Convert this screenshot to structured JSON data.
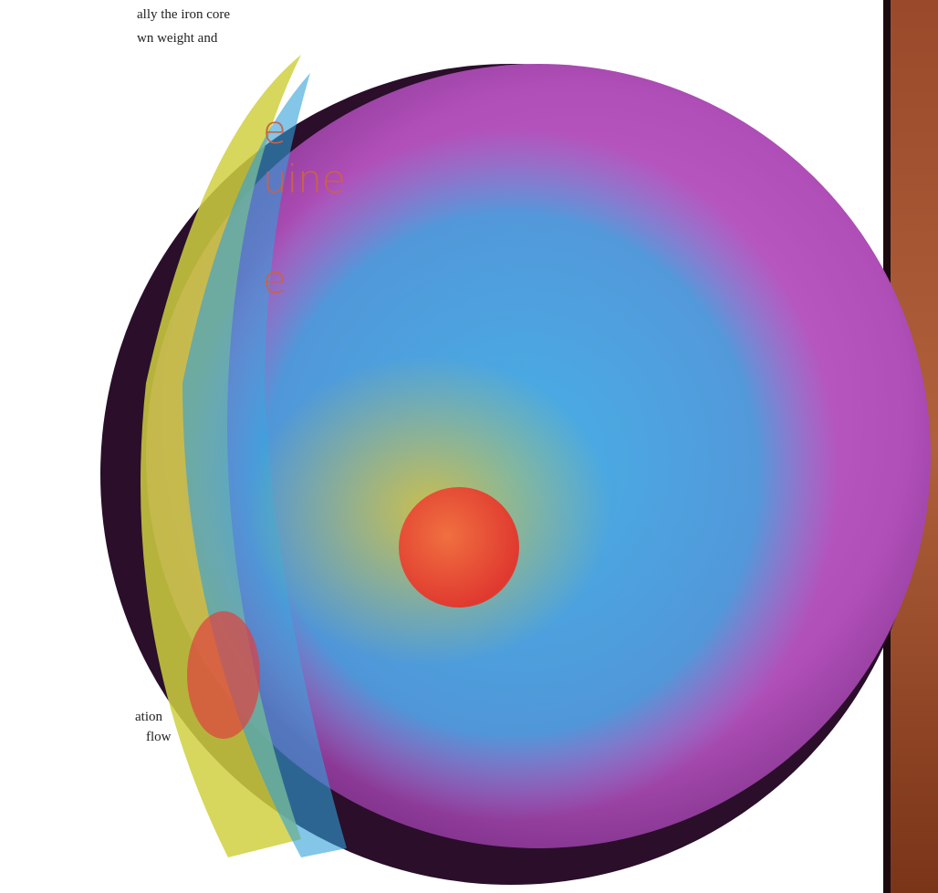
{
  "body_text": {
    "top_lines": [
      "ally the iron core",
      "wn weight and"
    ],
    "bottom_lines": [
      "ation",
      "flow"
    ]
  },
  "pull_quote": {
    "lines": [
      "e",
      "uine",
      "e"
    ]
  }
}
